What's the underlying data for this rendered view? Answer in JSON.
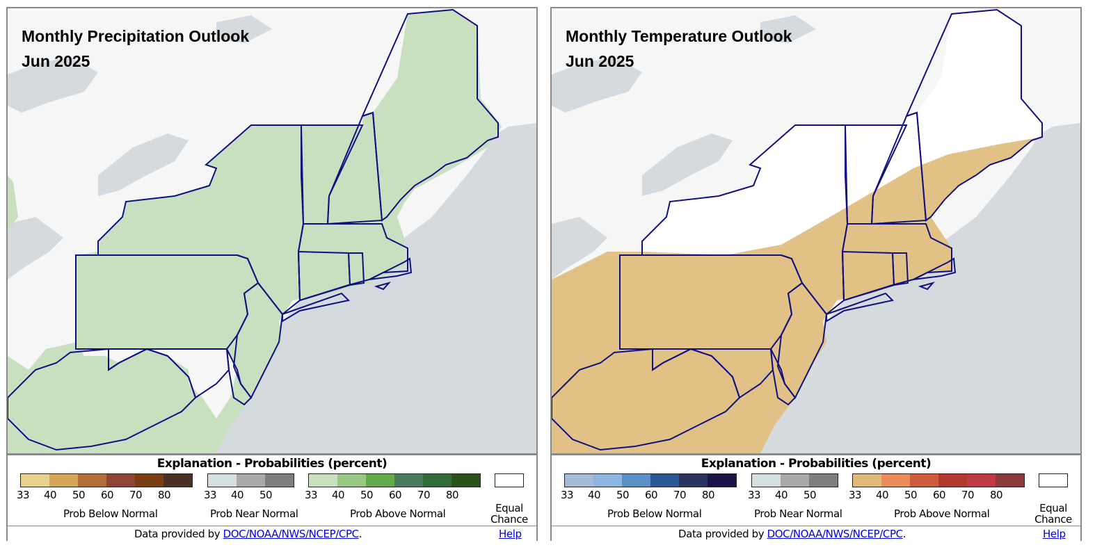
{
  "colors": {
    "water": "#d5dadf",
    "land": "#f6f6f6",
    "border": "#101080",
    "precip_fill": "#c8dfc0",
    "temp_fill": "#e1c185",
    "ec_fill": "#ffffff"
  },
  "panels": [
    {
      "id": "precipitation",
      "title_line1": "Monthly Precipitation Outlook",
      "title_line2": "Jun 2025",
      "legend": {
        "heading": "Explanation - Probabilities (percent)",
        "below": {
          "label": "Prob Below Normal",
          "colors": [
            "#e8d08f",
            "#d4a65a",
            "#b36d3a",
            "#8e4535",
            "#7a3e14",
            "#4a3124"
          ],
          "ticks": [
            "33",
            "40",
            "50",
            "60",
            "70",
            "80"
          ]
        },
        "near": {
          "label": "Prob Near Normal",
          "colors": [
            "#d5dee0",
            "#a9a8aa",
            "#7f7d80"
          ],
          "ticks": [
            "33",
            "40",
            "50"
          ]
        },
        "above": {
          "label": "Prob Above Normal",
          "colors": [
            "#c8dfc0",
            "#98c884",
            "#62ab4a",
            "#487a5c",
            "#336c3a",
            "#2b5218"
          ],
          "ticks": [
            "33",
            "40",
            "50",
            "60",
            "70",
            "80"
          ]
        },
        "equal_chance_line1": "Equal",
        "equal_chance_line2": "Chance"
      },
      "footer": {
        "prefix": "Data provided by ",
        "link": "DOC/NOAA/NWS/NCEP/CPC",
        "suffix": ".",
        "help": "Help"
      }
    },
    {
      "id": "temperature",
      "title_line1": "Monthly Temperature Outlook",
      "title_line2": "Jun 2025",
      "legend": {
        "heading": "Explanation - Probabilities (percent)",
        "below": {
          "label": "Prob Below Normal",
          "colors": [
            "#a6bcd6",
            "#8eb6e0",
            "#5a90c6",
            "#2a5894",
            "#2c3460",
            "#1a1448"
          ],
          "ticks": [
            "33",
            "40",
            "50",
            "60",
            "70",
            "80"
          ]
        },
        "near": {
          "label": "Prob Near Normal",
          "colors": [
            "#d5dee0",
            "#a9a8aa",
            "#7f7d80"
          ],
          "ticks": [
            "33",
            "40",
            "50"
          ]
        },
        "above": {
          "label": "Prob Above Normal",
          "colors": [
            "#e1b77a",
            "#ea8c58",
            "#cc5c3c",
            "#b33830",
            "#c03a46",
            "#8a3a3a"
          ],
          "ticks": [
            "33",
            "40",
            "50",
            "60",
            "70",
            "80"
          ]
        },
        "equal_chance_line1": "Equal",
        "equal_chance_line2": "Chance"
      },
      "footer": {
        "prefix": "Data provided by ",
        "link": "DOC/NOAA/NWS/NCEP/CPC",
        "suffix": ".",
        "help": "Help"
      }
    }
  ]
}
